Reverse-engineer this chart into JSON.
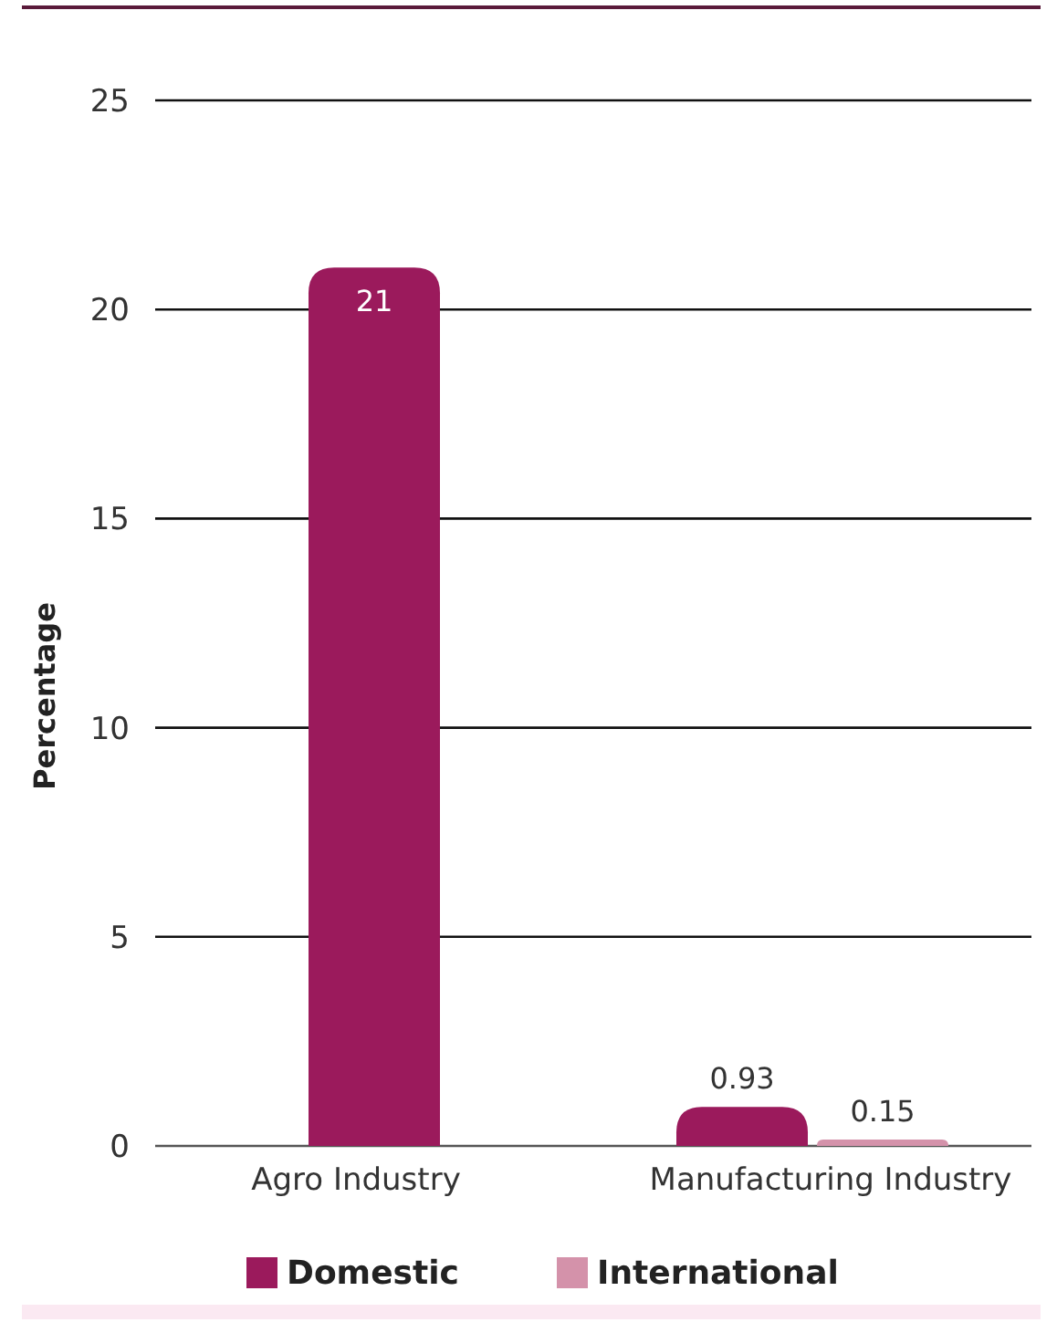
{
  "chart_data": {
    "type": "bar",
    "ylabel": "Percentage",
    "categories": [
      "Agro Industry",
      "Manufacturing Industry"
    ],
    "series": [
      {
        "name": "Domestic",
        "color": "#9b1a5c",
        "values": [
          21,
          0.93
        ]
      },
      {
        "name": "International",
        "color": "#d492aa",
        "values": [
          null,
          0.15
        ]
      }
    ],
    "ylim": [
      0,
      25
    ],
    "yticks": [
      0,
      5,
      10,
      15,
      20,
      25
    ],
    "grid": "y",
    "data_labels": true,
    "legend": "bottom"
  }
}
